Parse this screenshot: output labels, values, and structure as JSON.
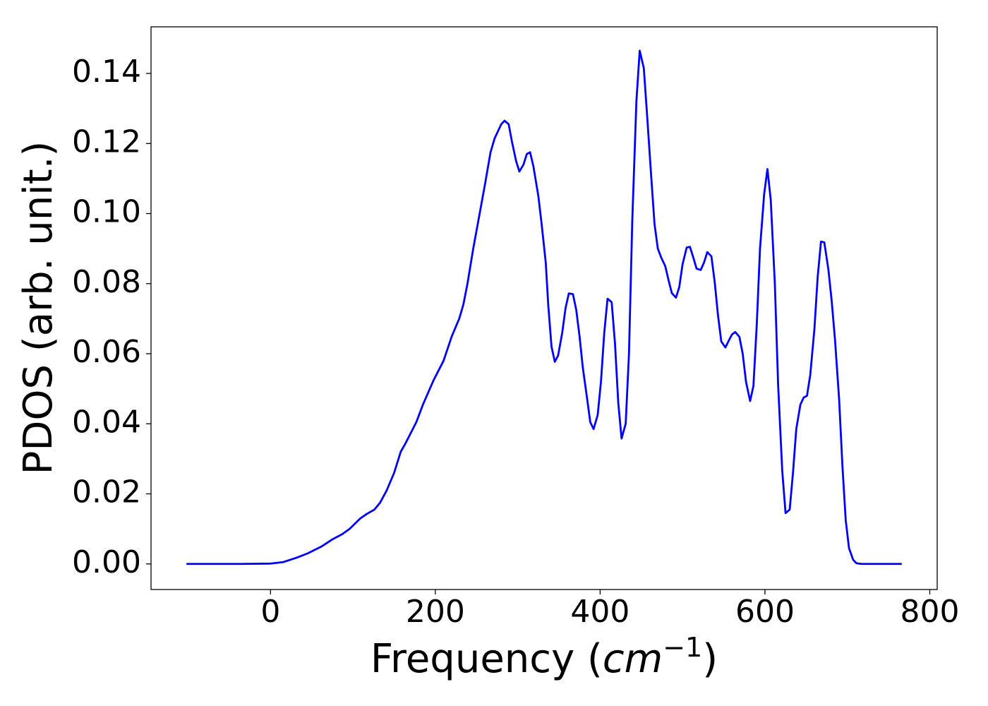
{
  "chart_data": {
    "type": "line",
    "ylabel": "PDOS (arb. unit.)",
    "xlabel": [
      "Frequency (",
      "cm",
      "−1",
      ")"
    ],
    "color": "#0000ff",
    "xlim": [
      -145,
      809
    ],
    "xticks": [
      0,
      200,
      400,
      600,
      800
    ],
    "ylim": [
      -0.0073,
      0.1533
    ],
    "yticks": [
      {
        "value": 0,
        "label": "0.00"
      },
      {
        "value": 0.02,
        "label": "0.02"
      },
      {
        "value": 0.04,
        "label": "0.04"
      },
      {
        "value": 0.06,
        "label": "0.06"
      },
      {
        "value": 0.08,
        "label": "0.08"
      },
      {
        "value": 0.1,
        "label": "0.10"
      },
      {
        "value": 0.12,
        "label": "0.12"
      },
      {
        "value": 0.14,
        "label": "0.14"
      }
    ],
    "x": [
      -102,
      -37,
      0,
      15,
      32,
      45,
      62,
      75,
      87,
      96,
      109,
      117,
      126,
      133,
      141,
      150,
      158,
      164,
      177,
      185,
      198,
      210,
      220,
      229,
      234,
      239,
      246,
      253,
      260,
      267,
      272,
      277,
      280,
      284,
      289,
      293,
      298,
      302,
      307,
      311,
      315,
      319,
      325,
      329,
      334,
      337,
      341,
      345,
      349,
      354,
      358,
      362,
      367,
      371,
      375,
      379,
      384,
      388,
      392,
      397,
      401,
      405,
      409,
      414,
      418,
      422,
      426,
      431,
      435,
      439,
      444,
      448,
      453,
      457,
      462,
      466,
      470,
      474,
      479,
      483,
      487,
      492,
      496,
      500,
      505,
      509,
      513,
      517,
      522,
      526,
      530,
      535,
      539,
      543,
      547,
      552,
      556,
      560,
      564,
      569,
      573,
      577,
      582,
      586,
      590,
      594,
      599,
      603,
      607,
      612,
      616,
      621,
      625,
      630,
      634,
      638,
      643,
      647,
      651,
      655,
      660,
      664,
      668,
      672,
      677,
      681,
      685,
      690,
      694,
      698,
      702,
      707,
      711,
      717,
      766
    ],
    "values": [
      0,
      0,
      0.0001,
      0.0005,
      0.0018,
      0.003,
      0.005,
      0.007,
      0.0085,
      0.01,
      0.013,
      0.0143,
      0.0155,
      0.0175,
      0.021,
      0.026,
      0.032,
      0.0345,
      0.0405,
      0.0455,
      0.0525,
      0.058,
      0.065,
      0.07,
      0.074,
      0.08,
      0.09,
      0.099,
      0.108,
      0.1175,
      0.1215,
      0.124,
      0.1255,
      0.1265,
      0.1255,
      0.1205,
      0.115,
      0.112,
      0.114,
      0.117,
      0.1175,
      0.1135,
      0.105,
      0.097,
      0.086,
      0.074,
      0.062,
      0.0577,
      0.0595,
      0.066,
      0.073,
      0.0772,
      0.077,
      0.0725,
      0.065,
      0.056,
      0.0475,
      0.0405,
      0.0385,
      0.0425,
      0.052,
      0.066,
      0.0757,
      0.0747,
      0.063,
      0.046,
      0.0358,
      0.04,
      0.06,
      0.098,
      0.132,
      0.1465,
      0.1415,
      0.128,
      0.1105,
      0.097,
      0.09,
      0.0875,
      0.085,
      0.081,
      0.0773,
      0.076,
      0.079,
      0.0855,
      0.0903,
      0.0905,
      0.0875,
      0.0843,
      0.0839,
      0.086,
      0.089,
      0.0878,
      0.0805,
      0.071,
      0.0635,
      0.0618,
      0.0637,
      0.0655,
      0.0662,
      0.0648,
      0.06,
      0.052,
      0.0465,
      0.0508,
      0.068,
      0.09,
      0.1055,
      0.1127,
      0.104,
      0.08,
      0.051,
      0.0265,
      0.0145,
      0.0155,
      0.026,
      0.0385,
      0.0455,
      0.0475,
      0.048,
      0.054,
      0.067,
      0.082,
      0.092,
      0.0918,
      0.084,
      0.075,
      0.064,
      0.047,
      0.028,
      0.0125,
      0.0045,
      0.0012,
      0.0002,
      0,
      0
    ]
  }
}
